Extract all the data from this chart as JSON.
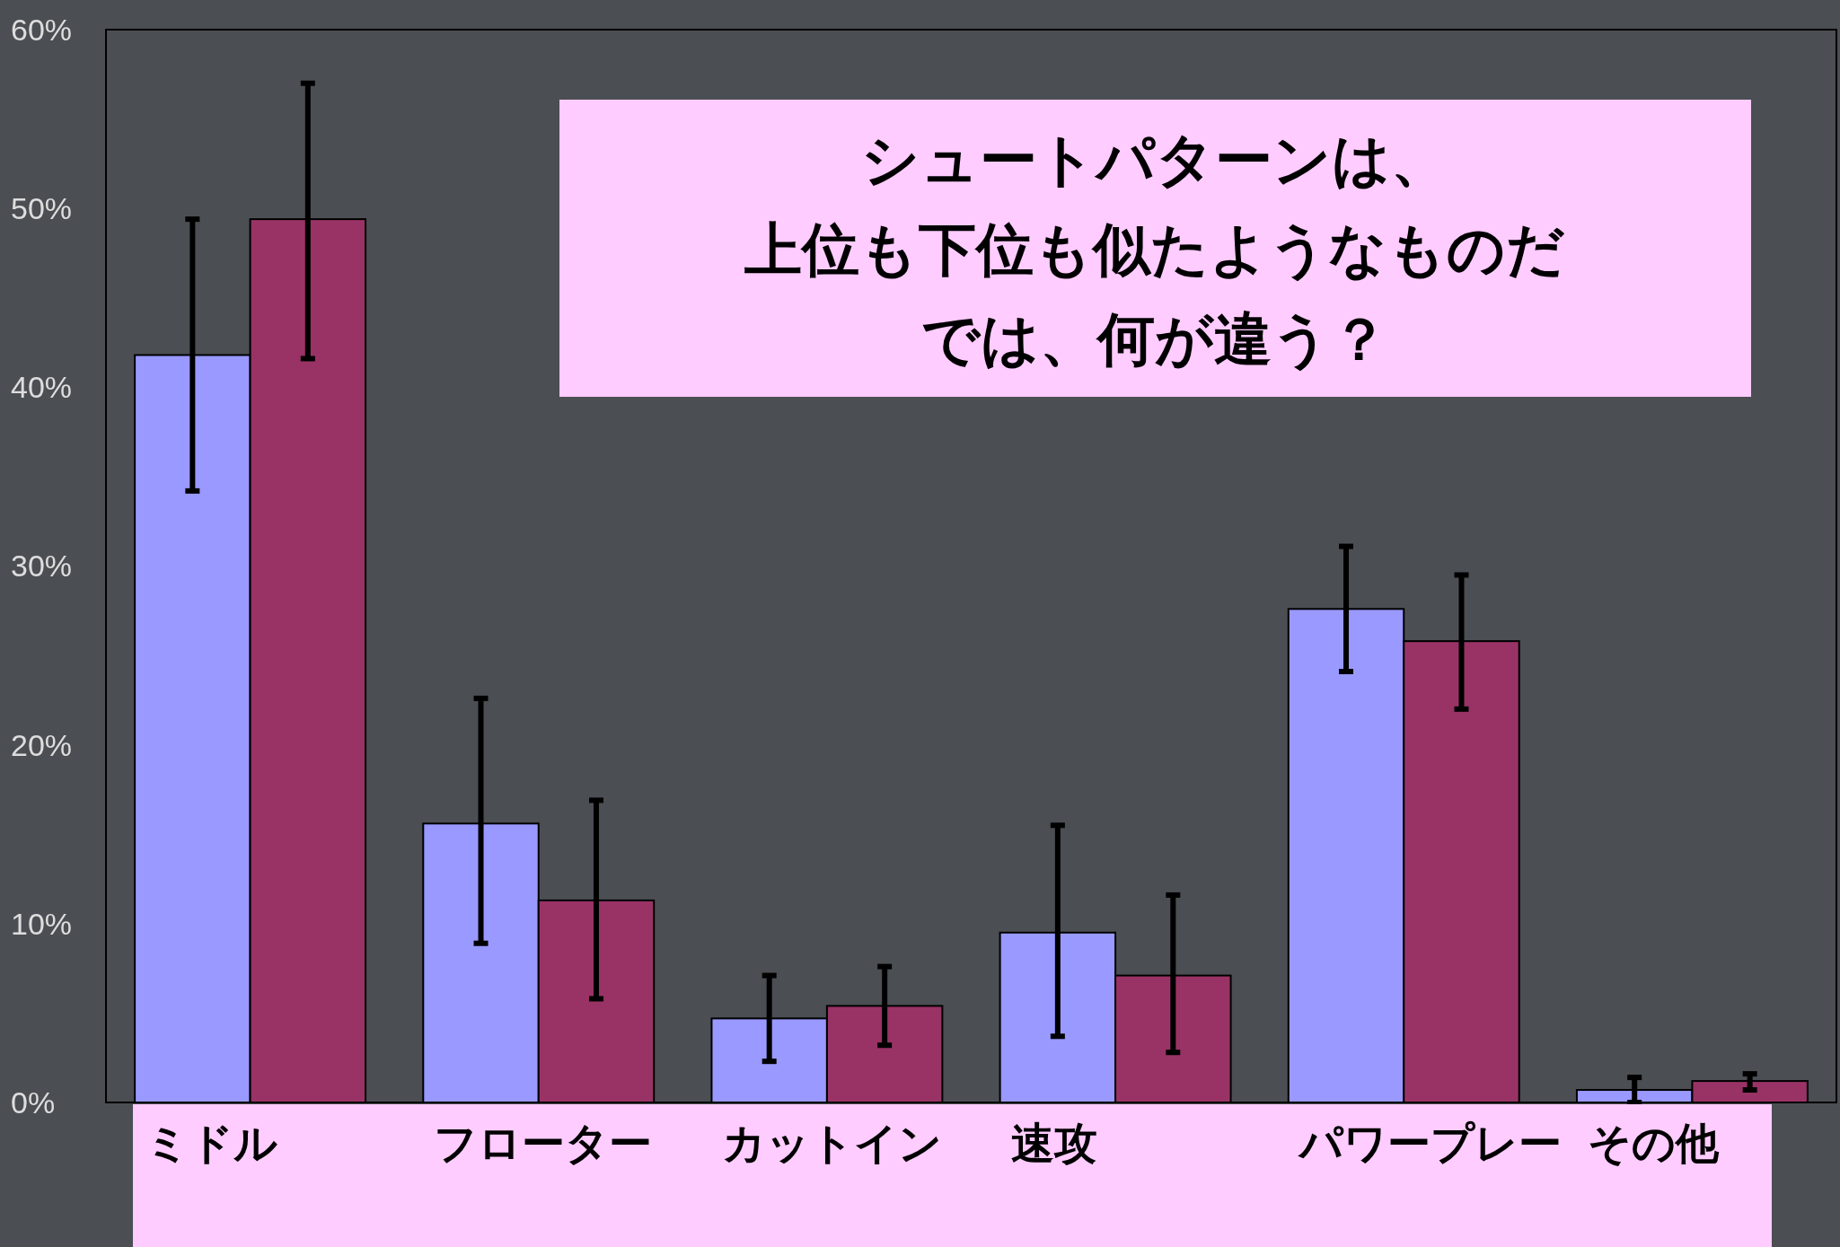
{
  "chart_data": {
    "type": "bar",
    "title": "シュートパターンは、",
    "subtitle": "上位も下位も似たようなものだ",
    "annotations": [
      "では、何が違う？"
    ],
    "categories": [
      "ミドル",
      "フローター",
      "カットイン",
      "速攻",
      "パワープレー",
      "その他"
    ],
    "series": [
      {
        "color": "#9999ff",
        "values": [
          41.8,
          15.6,
          4.7,
          9.5,
          27.6,
          0.7
        ],
        "errors": [
          [
            34.2,
            49.4
          ],
          [
            8.9,
            22.6
          ],
          [
            2.3,
            7.1
          ],
          [
            3.7,
            15.5
          ],
          [
            24.1,
            31.1
          ],
          [
            0,
            1.4
          ]
        ]
      },
      {
        "color": "#993366",
        "values": [
          49.4,
          11.3,
          5.4,
          7.1,
          25.8,
          1.2
        ],
        "errors": [
          [
            41.6,
            57.0
          ],
          [
            5.8,
            16.9
          ],
          [
            3.2,
            7.6
          ],
          [
            2.8,
            11.6
          ],
          [
            22.0,
            29.5
          ],
          [
            0.7,
            1.6
          ]
        ]
      }
    ],
    "ylim": [
      0,
      60
    ],
    "yticks": [
      {
        "value": 0,
        "label": "0%"
      },
      {
        "value": 10,
        "label": "10%"
      },
      {
        "value": 20,
        "label": "20%"
      },
      {
        "value": 30,
        "label": "30%"
      },
      {
        "value": 40,
        "label": "40%"
      },
      {
        "value": 50,
        "label": "50%"
      },
      {
        "value": 60,
        "label": "60%"
      }
    ],
    "grid": false
  }
}
